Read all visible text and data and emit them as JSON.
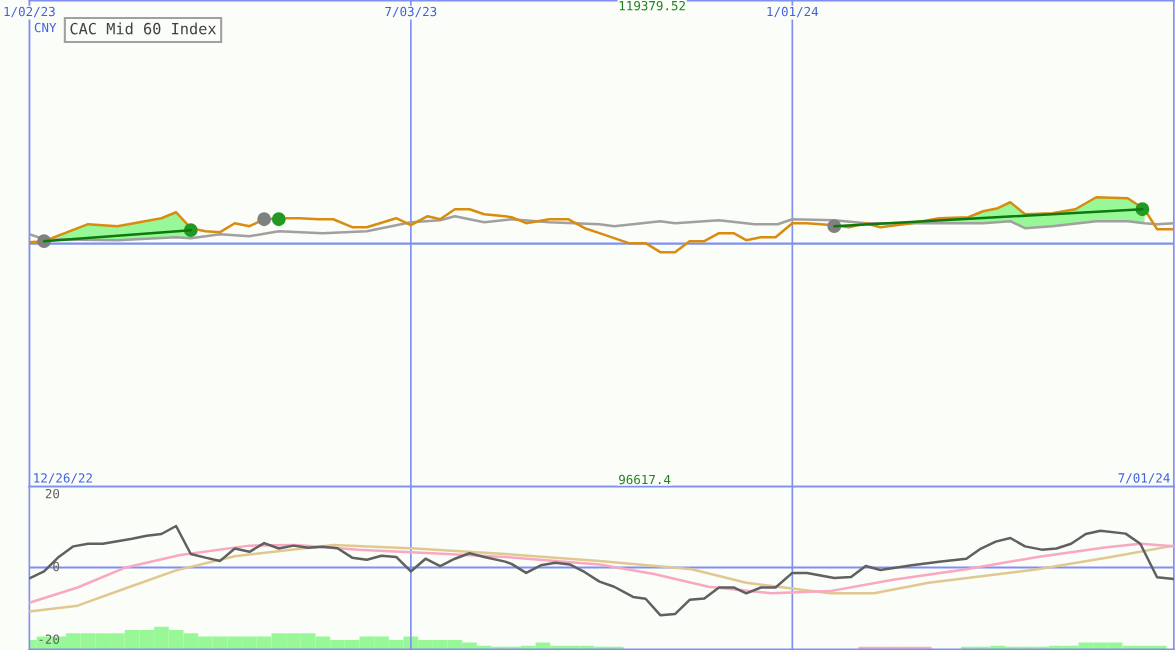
{
  "chart_data": [
    {
      "type": "line",
      "title": "CAC Mid 60 Index",
      "annotations": [
        "CNY"
      ],
      "xlim": [
        "2023-01-02",
        "2024-07-01"
      ],
      "xticks": [
        {
          "value": "2023-01-02",
          "label": "1/02/23"
        },
        {
          "value": "2023-07-03",
          "label": "7/03/23"
        },
        {
          "value": "2024-01-01",
          "label": "1/01/24"
        }
      ],
      "ylim": [
        96617.4,
        119379.52
      ],
      "yticks": [
        96617.4,
        119379.52
      ],
      "grid": "x",
      "legend": false,
      "marker": "none",
      "ref_lines": [
        {
          "axis": "y",
          "value": 108000,
          "label": null,
          "color": "#8090f0"
        }
      ],
      "series": [
        {
          "type": "area",
          "color": "#98f898",
          "x": [
            "2023-01-09",
            "2023-01-30",
            "2023-02-13",
            "2023-03-06",
            "2023-03-13",
            "2023-03-20"
          ],
          "values": [
            108115,
            108910,
            108816,
            109190,
            109471,
            108630
          ]
        },
        {
          "type": "area",
          "color": "#98f898",
          "x": [
            "2024-02-27",
            "2024-03-11",
            "2024-03-25",
            "2024-04-01",
            "2024-04-08",
            "2024-04-14",
            "2024-04-21",
            "2024-05-04",
            "2024-05-15",
            "2024-05-25",
            "2024-06-09",
            "2024-06-17"
          ],
          "values": [
            108956,
            109190,
            109237,
            109517,
            109658,
            109938,
            109377,
            109424,
            109611,
            110172,
            110125,
            109611
          ]
        },
        {
          "color": "#a0a0a0",
          "x": [
            "2023-01-02",
            "2023-01-09",
            "2023-02-13",
            "2023-03-13",
            "2023-03-20",
            "2023-04-03",
            "2023-04-17",
            "2023-05-01",
            "2023-05-22",
            "2023-06-12",
            "2023-06-26",
            "2023-07-03",
            "2023-07-17",
            "2023-07-24",
            "2023-08-07",
            "2023-08-20",
            "2023-09-07",
            "2023-10-01",
            "2023-10-08",
            "2023-10-30",
            "2023-11-06",
            "2023-11-27",
            "2023-12-14",
            "2023-12-25",
            "2024-01-01",
            "2024-01-21",
            "2024-02-05",
            "2024-02-27",
            "2024-04-01",
            "2024-04-14",
            "2024-04-21",
            "2024-05-04",
            "2024-05-25",
            "2024-06-09",
            "2024-06-17",
            "2024-06-23",
            "2024-07-01"
          ],
          "values": [
            108442,
            108209,
            108162,
            108302,
            108255,
            108442,
            108349,
            108582,
            108489,
            108582,
            108863,
            109003,
            109097,
            109284,
            109003,
            109143,
            109003,
            108910,
            108816,
            109050,
            108956,
            109097,
            108910,
            108910,
            109143,
            109097,
            108956,
            108956,
            108956,
            109050,
            108723,
            108816,
            109050,
            109050,
            108956,
            108910,
            108956
          ]
        },
        {
          "color": "#d88c10",
          "x": [
            "2023-01-02",
            "2023-01-09",
            "2023-01-30",
            "2023-02-13",
            "2023-03-06",
            "2023-03-13",
            "2023-03-20",
            "2023-03-27",
            "2023-04-03",
            "2023-04-10",
            "2023-04-17",
            "2023-04-24",
            "2023-05-04",
            "2023-05-11",
            "2023-05-20",
            "2023-05-27",
            "2023-06-05",
            "2023-06-12",
            "2023-06-26",
            "2023-07-03",
            "2023-07-11",
            "2023-07-17",
            "2023-07-24",
            "2023-07-31",
            "2023-08-07",
            "2023-08-17",
            "2023-08-20",
            "2023-08-27",
            "2023-09-07",
            "2023-09-16",
            "2023-09-24",
            "2023-10-01",
            "2023-10-15",
            "2023-10-23",
            "2023-10-30",
            "2023-11-06",
            "2023-11-13",
            "2023-11-20",
            "2023-11-27",
            "2023-12-04",
            "2023-12-10",
            "2023-12-17",
            "2023-12-24",
            "2024-01-01",
            "2024-01-08",
            "2024-01-21",
            "2024-01-28",
            "2024-02-05",
            "2024-02-12",
            "2024-02-27",
            "2024-03-11",
            "2024-03-25",
            "2024-04-01",
            "2024-04-08",
            "2024-04-14",
            "2024-04-21",
            "2024-05-04",
            "2024-05-15",
            "2024-05-25",
            "2024-06-09",
            "2024-06-17",
            "2024-06-23",
            "2024-07-01"
          ],
          "values": [
            108068,
            108115,
            108910,
            108816,
            109190,
            109471,
            108723,
            108582,
            108536,
            108956,
            108816,
            109143,
            109190,
            109190,
            109143,
            109143,
            108769,
            108769,
            109190,
            108863,
            109284,
            109143,
            109611,
            109611,
            109377,
            109284,
            109237,
            108956,
            109143,
            109143,
            108723,
            108489,
            108022,
            108022,
            107601,
            107601,
            108115,
            108115,
            108489,
            108489,
            108162,
            108302,
            108302,
            108956,
            108956,
            108863,
            108769,
            108956,
            108769,
            108956,
            109190,
            109237,
            109517,
            109658,
            109938,
            109377,
            109424,
            109611,
            110172,
            110125,
            109611,
            108676,
            108676
          ]
        },
        {
          "color": "#0c7a0c",
          "x": [
            "2023-01-09",
            "2023-02-13",
            "2023-03-20"
          ],
          "values": [
            108115,
            108370,
            108630
          ]
        },
        {
          "color": "#0c7a0c",
          "x": [
            "2024-01-21",
            "2024-04-03",
            "2024-06-16"
          ],
          "values": [
            108816,
            109210,
            109611
          ]
        },
        {
          "type": "scatter",
          "marker": "circle",
          "color": "#808080",
          "x": [
            "2023-01-09",
            "2023-04-24",
            "2024-01-21"
          ],
          "values": [
            108115,
            109143,
            108816
          ]
        },
        {
          "type": "scatter",
          "marker": "circle",
          "color": "#229922",
          "x": [
            "2023-03-20",
            "2023-05-01",
            "2024-06-16"
          ],
          "values": [
            108630,
            109143,
            109611
          ]
        }
      ]
    },
    {
      "type": "line",
      "annotations": [
        "12/26/22",
        "7/01/24"
      ],
      "xlim": [
        "2023-01-02",
        "2024-07-01"
      ],
      "xticks": [
        {
          "value": "2023-07-03",
          "label": null
        },
        {
          "value": "2024-01-01",
          "label": null
        }
      ],
      "ylim": [
        -22.5,
        22.2
      ],
      "yticks": [
        20,
        0,
        {
          "value": -20,
          "label": "-20"
        }
      ],
      "grid": "x",
      "legend": false,
      "tick_labels": "y",
      "marker": "none",
      "ref_lines": [
        {
          "axis": "y",
          "value": 0,
          "label": null,
          "color": "#8090f0"
        }
      ],
      "series": [
        {
          "type": "bar",
          "x": [
            "2023-01-02",
            "2023-01-09",
            "2023-01-16",
            "2023-01-23",
            "2023-01-30",
            "2023-02-06",
            "2023-02-13",
            "2023-02-20",
            "2023-02-27",
            "2023-03-06",
            "2023-03-13",
            "2023-03-20",
            "2023-03-27",
            "2023-04-03",
            "2023-04-10",
            "2023-04-17",
            "2023-04-24",
            "2023-05-01",
            "2023-05-08",
            "2023-05-15",
            "2023-05-22",
            "2023-05-29",
            "2023-06-05",
            "2023-06-12",
            "2023-06-19",
            "2023-06-26",
            "2023-07-03",
            "2023-07-10",
            "2023-07-17",
            "2023-07-24",
            "2023-07-31",
            "2023-08-07",
            "2023-08-14",
            "2023-08-21",
            "2023-08-28",
            "2023-09-04",
            "2023-09-11",
            "2023-09-18",
            "2023-09-25",
            "2023-10-02",
            "2023-10-09",
            "2023-10-16",
            "2023-10-23",
            "2023-10-30",
            "2023-11-06",
            "2023-11-13",
            "2023-11-20",
            "2023-11-27",
            "2023-12-04",
            "2023-12-11",
            "2023-12-18",
            "2023-12-25",
            "2024-01-01",
            "2024-01-08",
            "2024-01-15",
            "2024-01-22",
            "2024-01-29",
            "2024-02-05",
            "2024-02-12",
            "2024-02-19",
            "2024-02-26",
            "2024-03-04",
            "2024-03-11",
            "2024-03-18",
            "2024-03-25",
            "2024-04-01",
            "2024-04-08",
            "2024-04-15",
            "2024-04-22",
            "2024-04-29",
            "2024-05-06",
            "2024-05-13",
            "2024-05-20",
            "2024-05-27",
            "2024-06-03",
            "2024-06-10",
            "2024-06-17",
            "2024-06-24"
          ],
          "base": [
            -22.5,
            -22.5,
            -22.5,
            -22.5,
            -22.5,
            -22.5,
            -22.5,
            -22.5,
            -22.5,
            -22.5,
            -22.5,
            -22.5,
            -22.5,
            -22.5,
            -22.5,
            -22.5,
            -22.5,
            -22.5,
            -22.5,
            -22.5,
            -22.5,
            -22.5,
            -22.5,
            -22.5,
            -22.5,
            -22.5,
            -22.5,
            -22.5,
            -22.5,
            -22.5,
            -22.5,
            -22.5,
            -22.5,
            -22.5,
            -22.5,
            -22.5,
            -22.5,
            -22.5,
            -22.5,
            -22.5,
            -22.5,
            null,
            null,
            null,
            null,
            null,
            null,
            null,
            null,
            null,
            null,
            null,
            null,
            null,
            null,
            null,
            null,
            -22.5,
            -22.5,
            -22.5,
            -22.5,
            -22.5,
            null,
            null,
            -22.5,
            -22.5,
            -22.5,
            -22.5,
            -22.5,
            -22.5,
            -22.5,
            -22.5,
            -22.5,
            -22.5,
            -22.5,
            -22.5,
            -22.5,
            -22.5
          ],
          "values": [
            2.6,
            3.5,
            3.5,
            4.4,
            4.4,
            4.4,
            4.4,
            5.3,
            5.3,
            6.2,
            5.3,
            4.4,
            3.5,
            3.5,
            3.5,
            3.5,
            3.5,
            4.4,
            4.4,
            4.4,
            3.5,
            2.6,
            2.6,
            3.5,
            3.5,
            2.6,
            3.5,
            2.6,
            2.6,
            2.6,
            1.9,
            1.0,
            0.7,
            0.7,
            1.0,
            1.9,
            1.0,
            1.0,
            1.0,
            0.7,
            0.7,
            null,
            null,
            null,
            null,
            null,
            null,
            null,
            null,
            null,
            null,
            null,
            null,
            null,
            null,
            null,
            null,
            0.7,
            0.7,
            0.7,
            0.7,
            0.7,
            null,
            null,
            0.7,
            0.7,
            1.0,
            0.7,
            0.7,
            0.7,
            1.0,
            1.0,
            1.9,
            1.9,
            1.9,
            1.0,
            1.0,
            1.0
          ],
          "colors": [
            "#98f898",
            "#98f898",
            "#98f898",
            "#98f898",
            "#98f898",
            "#98f898",
            "#98f898",
            "#98f898",
            "#98f898",
            "#98f898",
            "#98f898",
            "#98f898",
            "#98f898",
            "#98f898",
            "#98f898",
            "#98f898",
            "#98f898",
            "#98f898",
            "#98f898",
            "#98f898",
            "#98f898",
            "#98f898",
            "#98f898",
            "#98f898",
            "#98f898",
            "#98f898",
            "#98f898",
            "#98f898",
            "#98f898",
            "#98f898",
            "#98f898",
            "#98f898",
            "#98f898",
            "#98f898",
            "#98f898",
            "#98f898",
            "#98f898",
            "#98f898",
            "#98f898",
            "#98f898",
            "#98f898",
            "#98f898",
            "#98f898",
            "#98f898",
            "#98f898",
            "#98f898",
            "#98f898",
            "#98f898",
            "#98f898",
            "#98f898",
            "#98f898",
            "#98f898",
            "#98f898",
            "#98f898",
            "#98f898",
            "#98f898",
            "#98f898",
            "#f8b0c0",
            "#f8b0c0",
            "#f8b0c0",
            "#f8b0c0",
            "#f8b0c0",
            "#98f898",
            "#98f898",
            "#98f898",
            "#98f898",
            "#98f898",
            "#98f898",
            "#98f898",
            "#98f898",
            "#98f898",
            "#98f898",
            "#98f898",
            "#98f898",
            "#98f898",
            "#98f898",
            "#98f898",
            "#98f898"
          ]
        },
        {
          "color": "#e0c890",
          "x": [
            "2023-01-02",
            "2023-01-25",
            "2023-02-17",
            "2023-03-13",
            "2023-04-10",
            "2023-05-27",
            "2023-07-05",
            "2023-08-17",
            "2023-10-01",
            "2023-11-14",
            "2023-12-10",
            "2024-01-19",
            "2024-02-09",
            "2024-03-06",
            "2024-04-27",
            "2024-06-01",
            "2024-07-01"
          ],
          "values": [
            -12.1,
            -10.5,
            -5.7,
            -0.8,
            3.1,
            6.2,
            5.2,
            3.7,
            1.8,
            -0.5,
            -4.2,
            -7.1,
            -7.1,
            -4.2,
            -0.5,
            2.9,
            6.0
          ]
        },
        {
          "color": "#f8a8c0",
          "x": [
            "2023-01-02",
            "2023-01-25",
            "2023-02-17",
            "2023-03-15",
            "2023-04-17",
            "2023-05-09",
            "2023-06-08",
            "2023-07-13",
            "2023-08-17",
            "2023-10-01",
            "2023-10-27",
            "2023-11-22",
            "2023-12-22",
            "2024-01-19",
            "2024-02-18",
            "2024-03-24",
            "2024-04-27",
            "2024-05-29",
            "2024-06-15",
            "2024-07-01"
          ],
          "values": [
            -9.7,
            -5.5,
            0,
            3.4,
            6.0,
            6.2,
            4.9,
            3.9,
            2.9,
            0.8,
            -1.8,
            -5.3,
            -7.1,
            -6.5,
            -3.4,
            -0.5,
            2.9,
            5.5,
            6.5,
            5.8
          ]
        },
        {
          "color": "#606060",
          "x": [
            "2023-01-02",
            "2023-01-09",
            "2023-01-16",
            "2023-01-23",
            "2023-01-30",
            "2023-02-06",
            "2023-02-13",
            "2023-02-20",
            "2023-02-27",
            "2023-03-06",
            "2023-03-13",
            "2023-03-20",
            "2023-03-27",
            "2023-04-03",
            "2023-04-10",
            "2023-04-17",
            "2023-04-24",
            "2023-05-01",
            "2023-05-08",
            "2023-05-15",
            "2023-05-22",
            "2023-05-29",
            "2023-06-05",
            "2023-06-12",
            "2023-06-19",
            "2023-06-26",
            "2023-07-03",
            "2023-07-10",
            "2023-07-17",
            "2023-07-24",
            "2023-07-31",
            "2023-08-07",
            "2023-08-17",
            "2023-08-20",
            "2023-08-27",
            "2023-09-03",
            "2023-09-10",
            "2023-09-17",
            "2023-09-24",
            "2023-10-01",
            "2023-10-08",
            "2023-10-17",
            "2023-10-23",
            "2023-10-30",
            "2023-11-06",
            "2023-11-13",
            "2023-11-20",
            "2023-11-27",
            "2023-12-04",
            "2023-12-10",
            "2023-12-17",
            "2023-12-24",
            "2024-01-01",
            "2024-01-08",
            "2024-01-21",
            "2024-01-29",
            "2024-02-05",
            "2024-02-12",
            "2024-02-27",
            "2024-03-11",
            "2024-03-24",
            "2024-03-31",
            "2024-04-07",
            "2024-04-14",
            "2024-04-21",
            "2024-04-29",
            "2024-05-06",
            "2024-05-13",
            "2024-05-20",
            "2024-05-27",
            "2024-06-08",
            "2024-06-15",
            "2024-06-23",
            "2024-07-01"
          ],
          "values": [
            -3.0,
            -1.1,
            2.9,
            5.8,
            6.5,
            6.5,
            7.2,
            7.9,
            8.7,
            9.2,
            11.4,
            3.7,
            2.7,
            1.8,
            5.2,
            4.3,
            6.7,
            5.2,
            6.0,
            5.4,
            5.7,
            5.3,
            2.7,
            2.1,
            3.2,
            2.9,
            -1.1,
            2.4,
            0.4,
            2.4,
            3.9,
            2.9,
            1.6,
            1.0,
            -1.5,
            0.6,
            1.3,
            0.8,
            -1.3,
            -3.9,
            -5.3,
            -8.1,
            -8.6,
            -13.1,
            -12.8,
            -8.9,
            -8.5,
            -5.5,
            -5.5,
            -7.1,
            -5.5,
            -5.5,
            -1.5,
            -1.5,
            -2.9,
            -2.6,
            0.4,
            -0.7,
            0.6,
            1.6,
            2.4,
            5.2,
            7.1,
            8.1,
            5.8,
            4.9,
            5.2,
            6.5,
            9.2,
            10.1,
            9.3,
            6.5,
            -2.7,
            -3.2
          ]
        }
      ]
    }
  ]
}
